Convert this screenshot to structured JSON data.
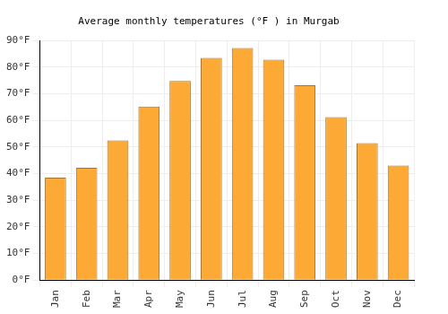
{
  "chart_data": {
    "type": "bar",
    "title": "Average monthly temperatures (°F ) in Murgab",
    "categories": [
      "Jan",
      "Feb",
      "Mar",
      "Apr",
      "May",
      "Jun",
      "Jul",
      "Aug",
      "Sep",
      "Oct",
      "Nov",
      "Dec"
    ],
    "values": [
      38.5,
      42.2,
      52.5,
      65.2,
      74.8,
      83.5,
      87.2,
      82.8,
      73.2,
      61.2,
      51.5,
      43.0
    ],
    "color": "#fcaa35",
    "ylim": [
      0,
      90
    ],
    "yticks": [
      {
        "value": 0,
        "label": "0°F"
      },
      {
        "value": 10,
        "label": "10°F"
      },
      {
        "value": 20,
        "label": "20°F"
      },
      {
        "value": 30,
        "label": "30°F"
      },
      {
        "value": 40,
        "label": "40°F"
      },
      {
        "value": 50,
        "label": "50°F"
      },
      {
        "value": 60,
        "label": "60°F"
      },
      {
        "value": 70,
        "label": "70°F"
      },
      {
        "value": 80,
        "label": "80°F"
      },
      {
        "value": 90,
        "label": "90°F"
      }
    ],
    "grid": true
  }
}
